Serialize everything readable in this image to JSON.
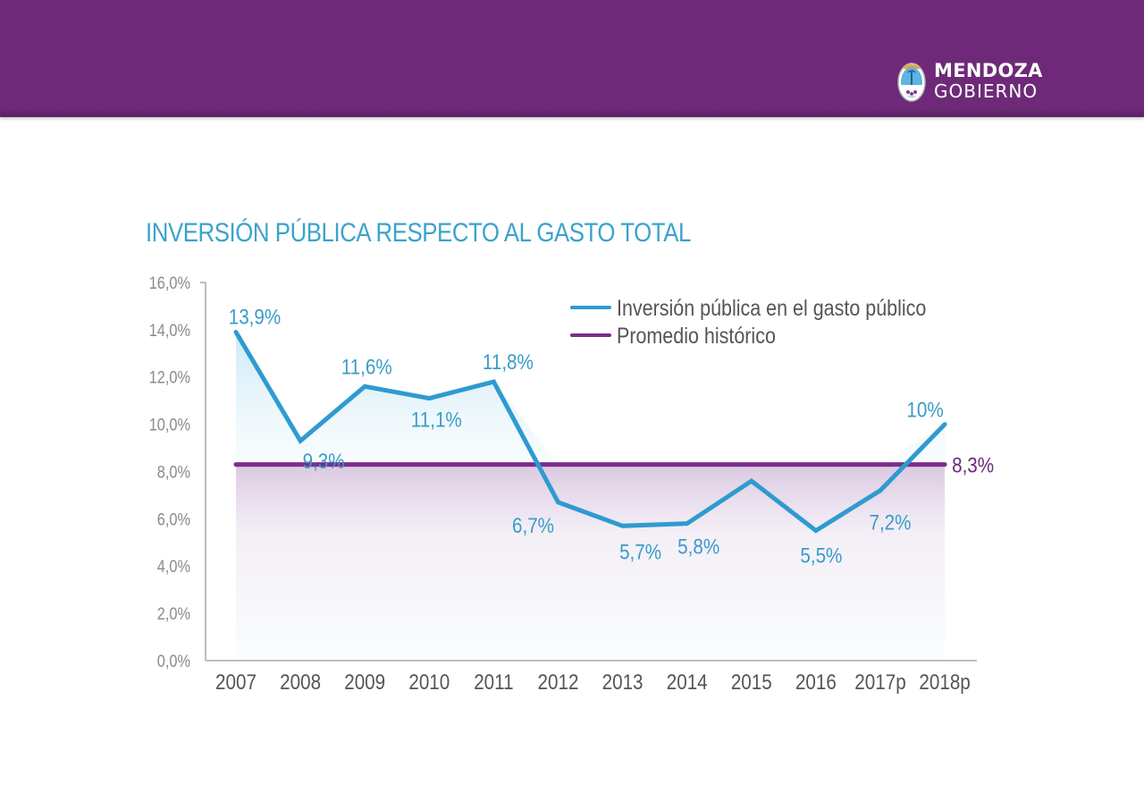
{
  "header": {
    "logo": {
      "icon": "mendoza-coat-of-arms-icon",
      "line1": "MENDOZA",
      "line2": "GOBIERNO"
    },
    "background_color": "#6e2a78"
  },
  "chart_data": {
    "type": "line",
    "title": "INVERSIÓN PÚBLICA RESPECTO AL GASTO TOTAL",
    "xlabel": "",
    "ylabel": "",
    "categories": [
      "2007",
      "2008",
      "2009",
      "2010",
      "2011",
      "2012",
      "2013",
      "2014",
      "2015",
      "2016",
      "2017p",
      "2018p"
    ],
    "y_ticks": [
      "0,0%",
      "2,0%",
      "4,0%",
      "6,0%",
      "8,0%",
      "10,0%",
      "12,0%",
      "14,0%",
      "16,0%"
    ],
    "ylim": [
      0,
      16
    ],
    "grid": false,
    "legend_position": "top-right",
    "series": [
      {
        "name": "Inversión pública en el gasto público",
        "color": "#2e9bd0",
        "values": [
          13.9,
          9.3,
          11.6,
          11.1,
          11.8,
          6.7,
          5.7,
          5.8,
          7.6,
          5.5,
          7.2,
          10.0
        ],
        "labels": [
          "13,9%",
          "9,3%",
          "11,6%",
          "11,1%",
          "11,8%",
          "6,7%",
          "5,7%",
          "5,8%",
          "",
          "5,5%",
          "7,2%",
          "10%"
        ]
      },
      {
        "name": "Promedio histórico",
        "color": "#7b2d8b",
        "values": [
          8.3,
          8.3,
          8.3,
          8.3,
          8.3,
          8.3,
          8.3,
          8.3,
          8.3,
          8.3,
          8.3,
          8.3
        ],
        "end_label": "8,3%"
      }
    ]
  }
}
